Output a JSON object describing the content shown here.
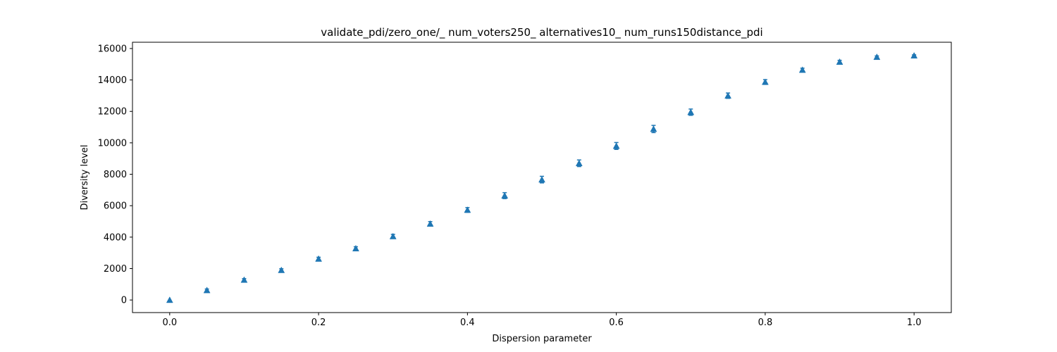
{
  "chart_data": {
    "type": "scatter",
    "title": "validate_pdi/zero_one/_ num_voters250_ alternatives10_ num_runs150distance_pdi",
    "xlabel": "Dispersion parameter",
    "ylabel": "Diversity level",
    "xlim": [
      -0.05,
      1.05
    ],
    "ylim": [
      -800,
      16400
    ],
    "xticks": [
      0.0,
      0.2,
      0.4,
      0.6,
      0.8,
      1.0
    ],
    "xtick_labels": [
      "0.0",
      "0.2",
      "0.4",
      "0.6",
      "0.8",
      "1.0"
    ],
    "yticks": [
      0,
      2000,
      4000,
      6000,
      8000,
      10000,
      12000,
      14000,
      16000
    ],
    "ytick_labels": [
      "0",
      "2000",
      "4000",
      "6000",
      "8000",
      "10000",
      "12000",
      "14000",
      "16000"
    ],
    "grid": false,
    "marker": "triangle-up",
    "color": "#1f77b4",
    "x": [
      0.0,
      0.05,
      0.1,
      0.15,
      0.2,
      0.25,
      0.3,
      0.35,
      0.4,
      0.45,
      0.5,
      0.55,
      0.6,
      0.65,
      0.7,
      0.75,
      0.8,
      0.85,
      0.9,
      0.95,
      1.0
    ],
    "y": [
      0,
      620,
      1280,
      1900,
      2620,
      3280,
      4050,
      4850,
      5730,
      6640,
      7660,
      8700,
      9800,
      10880,
      11950,
      13000,
      13870,
      14640,
      15150,
      15460,
      15550
    ],
    "error": [
      0,
      80,
      80,
      90,
      100,
      110,
      130,
      140,
      150,
      190,
      210,
      210,
      220,
      230,
      200,
      170,
      150,
      110,
      100,
      70,
      50
    ]
  }
}
